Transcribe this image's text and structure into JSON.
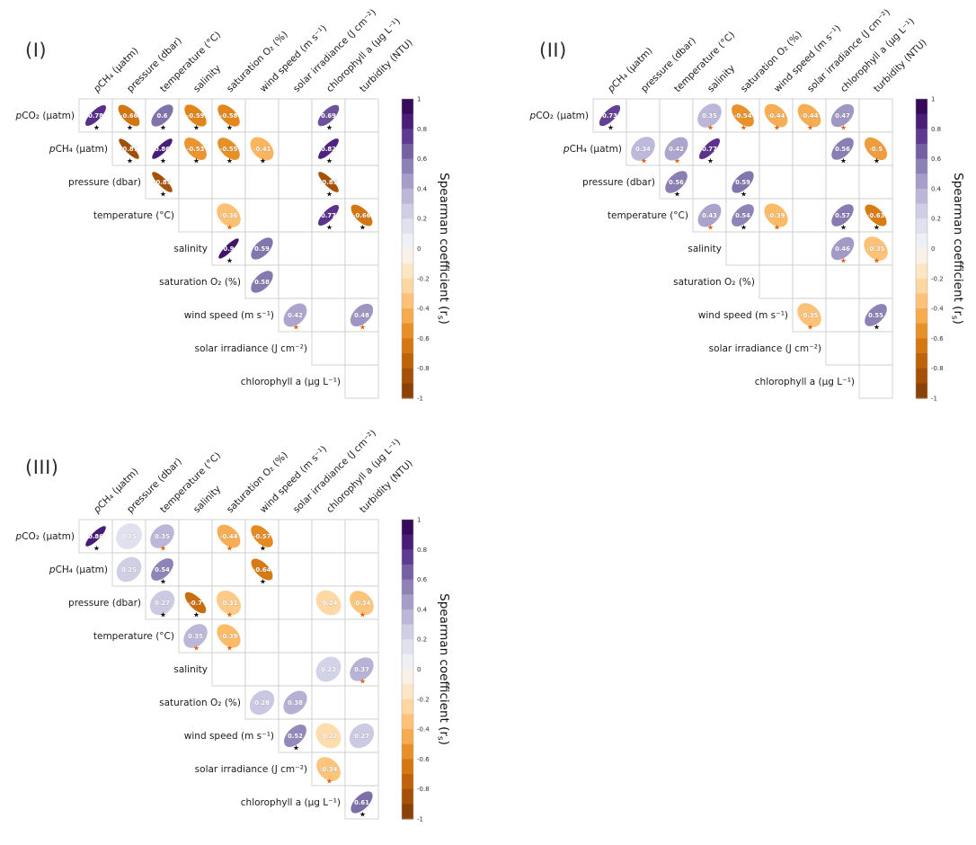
{
  "chart_data": {
    "type": "heatmap",
    "subtype": "correlation_ellipse_matrix_upper_triangle",
    "row_labels": [
      "pCO₂ (µatm)",
      "pCH₄ (µatm)",
      "pressure (dbar)",
      "temperature (°C)",
      "salinity",
      "saturation O₂ (%)",
      "wind speed (m s⁻¹)",
      "solar irradiance (J cm⁻²)",
      "chlorophyll a (µg L⁻¹)"
    ],
    "col_labels": [
      "pCH₄ (µatm)",
      "pressure (dbar)",
      "temperature (°C)",
      "salinity",
      "saturation O₂ (%)",
      "wind speed (m s⁻¹)",
      "solar irradiance (J cm⁻²)",
      "chlorophyll a (µg L⁻¹)",
      "turbidity (NTU)"
    ],
    "cell_format": [
      "row_index",
      "col_index",
      "spearman_r",
      "significance_star_color"
    ],
    "panels": [
      {
        "label": "(I)",
        "cells": [
          [
            0,
            0,
            0.78,
            "black"
          ],
          [
            0,
            1,
            -0.66,
            "black"
          ],
          [
            0,
            2,
            0.6,
            "black"
          ],
          [
            0,
            3,
            -0.59,
            "black"
          ],
          [
            0,
            4,
            -0.58,
            "black"
          ],
          [
            0,
            7,
            0.69,
            "black"
          ],
          [
            1,
            1,
            -0.87,
            "black"
          ],
          [
            1,
            2,
            0.86,
            "black"
          ],
          [
            1,
            3,
            -0.53,
            "black"
          ],
          [
            1,
            4,
            -0.55,
            "black"
          ],
          [
            1,
            5,
            -0.41,
            "black"
          ],
          [
            1,
            7,
            0.82,
            "black"
          ],
          [
            2,
            2,
            -0.85,
            "black"
          ],
          [
            2,
            7,
            -0.85,
            "black"
          ],
          [
            3,
            4,
            -0.36,
            "orange"
          ],
          [
            3,
            7,
            0.77,
            "black"
          ],
          [
            3,
            8,
            -0.66,
            "black"
          ],
          [
            4,
            4,
            0.9,
            "black"
          ],
          [
            4,
            5,
            0.59,
            null
          ],
          [
            5,
            5,
            0.58,
            null
          ],
          [
            6,
            6,
            0.42,
            "orange"
          ],
          [
            6,
            8,
            0.48,
            "orange"
          ]
        ]
      },
      {
        "label": "(II)",
        "cells": [
          [
            0,
            0,
            0.73,
            "black"
          ],
          [
            0,
            3,
            0.35,
            "orange"
          ],
          [
            0,
            4,
            -0.54,
            "orange"
          ],
          [
            0,
            5,
            -0.44,
            "orange"
          ],
          [
            0,
            6,
            -0.44,
            "orange"
          ],
          [
            0,
            7,
            0.47,
            "orange"
          ],
          [
            1,
            1,
            0.34,
            "orange"
          ],
          [
            1,
            2,
            0.42,
            "orange"
          ],
          [
            1,
            3,
            0.77,
            "black"
          ],
          [
            1,
            7,
            0.56,
            "black"
          ],
          [
            1,
            8,
            -0.5,
            "black"
          ],
          [
            2,
            2,
            0.56,
            "black"
          ],
          [
            2,
            4,
            0.59,
            "black"
          ],
          [
            3,
            3,
            0.43,
            "orange"
          ],
          [
            3,
            4,
            0.54,
            "black"
          ],
          [
            3,
            5,
            -0.39,
            "orange"
          ],
          [
            3,
            7,
            0.57,
            "black"
          ],
          [
            3,
            8,
            -0.63,
            "black"
          ],
          [
            4,
            7,
            0.46,
            "orange"
          ],
          [
            4,
            8,
            -0.35,
            "orange"
          ],
          [
            6,
            6,
            -0.35,
            "orange"
          ],
          [
            6,
            8,
            0.55,
            "black"
          ]
        ]
      },
      {
        "label": "(III)",
        "cells": [
          [
            0,
            0,
            0.86,
            "black"
          ],
          [
            0,
            1,
            0.15,
            null
          ],
          [
            0,
            2,
            0.35,
            "orange"
          ],
          [
            0,
            4,
            -0.44,
            "orange"
          ],
          [
            0,
            5,
            -0.57,
            "black"
          ],
          [
            1,
            1,
            0.25,
            null
          ],
          [
            1,
            2,
            0.54,
            "black"
          ],
          [
            1,
            5,
            -0.64,
            "black"
          ],
          [
            2,
            2,
            0.27,
            "black"
          ],
          [
            2,
            3,
            -0.7,
            "black"
          ],
          [
            2,
            4,
            -0.31,
            "orange"
          ],
          [
            2,
            7,
            -0.24,
            null
          ],
          [
            2,
            8,
            -0.34,
            "orange"
          ],
          [
            3,
            3,
            0.35,
            "orange"
          ],
          [
            3,
            4,
            -0.39,
            "orange"
          ],
          [
            4,
            7,
            0.23,
            null
          ],
          [
            4,
            8,
            0.37,
            "orange"
          ],
          [
            5,
            5,
            0.28,
            null
          ],
          [
            5,
            6,
            0.38,
            null
          ],
          [
            6,
            6,
            0.52,
            "black"
          ],
          [
            6,
            7,
            -0.22,
            null
          ],
          [
            6,
            8,
            0.27,
            null
          ],
          [
            7,
            7,
            -0.34,
            "orange"
          ],
          [
            8,
            8,
            0.61,
            "black"
          ]
        ]
      }
    ],
    "colorbar": {
      "label_main": "Spearman coefficient (r",
      "label_sub": "s",
      "label_end": ")",
      "min": -1,
      "max": 1,
      "ticks": [
        1,
        0.8,
        0.6,
        0.4,
        0.2,
        0,
        -0.2,
        -0.4,
        -0.6,
        -0.8,
        -1
      ],
      "palette": [
        {
          "v": -1.0,
          "c": "#7f3b08"
        },
        {
          "v": -0.8,
          "c": "#b35806"
        },
        {
          "v": -0.6,
          "c": "#e08214"
        },
        {
          "v": -0.4,
          "c": "#fdb863"
        },
        {
          "v": -0.2,
          "c": "#fee0b6"
        },
        {
          "v": 0.0,
          "c": "#f7f7f7"
        },
        {
          "v": 0.2,
          "c": "#d8daeb"
        },
        {
          "v": 0.4,
          "c": "#b2abd2"
        },
        {
          "v": 0.6,
          "c": "#8073ac"
        },
        {
          "v": 0.8,
          "c": "#542788"
        },
        {
          "v": 1.0,
          "c": "#2d004b"
        }
      ]
    },
    "star_colors": {
      "black": "#111111",
      "orange": "#e2620f"
    },
    "grid_line_color": "#c9c9c9",
    "text_color": "#1a1a1a"
  }
}
